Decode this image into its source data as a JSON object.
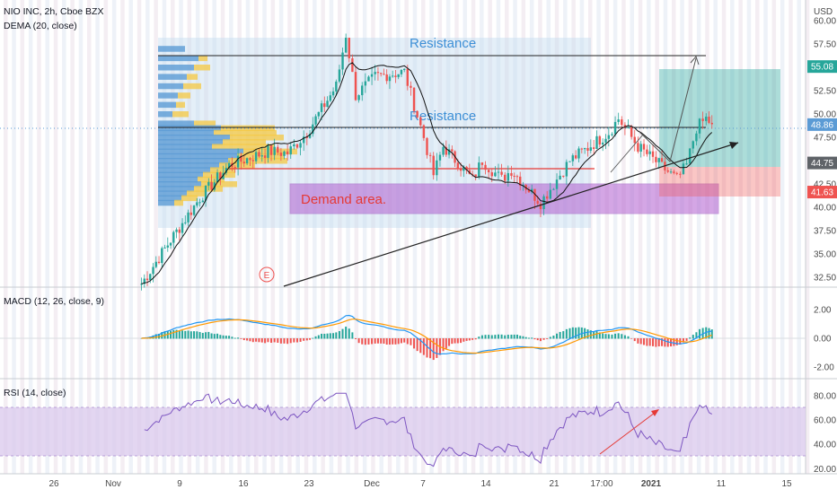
{
  "header": {
    "symbol_line": "NIO INC, 2h, Cboe BZX",
    "indicator_line": "DEMA (20, close)"
  },
  "price_axis": {
    "currency": "USD",
    "ticks": [
      "60.00",
      "57.50",
      "55.00",
      "52.50",
      "50.00",
      "47.50",
      "45.00",
      "42.50",
      "40.00",
      "37.50",
      "35.00",
      "32.50"
    ],
    "badges": [
      {
        "value": "55.08",
        "color": "#26a69a"
      },
      {
        "value": "48.86",
        "color": "#5b9bd5"
      },
      {
        "value": "44.75",
        "color": "#5f6368"
      },
      {
        "value": "41.63",
        "color": "#ef5350"
      }
    ]
  },
  "x_axis": {
    "labels": [
      "26",
      "Nov",
      "9",
      "16",
      "23",
      "Dec",
      "7",
      "14",
      "21",
      "17:00",
      "2021",
      "11",
      "15"
    ]
  },
  "annotations": {
    "resistance_top": "Resistance",
    "resistance_mid": "Resistance",
    "demand": "Demand area.",
    "event_marker": "E"
  },
  "macd_panel": {
    "title": "MACD (12, 26, close, 9)",
    "ticks": [
      "2.00",
      "0.00",
      "-2.00"
    ]
  },
  "rsi_panel": {
    "title": "RSI (14, close)",
    "ticks": [
      "80.00",
      "60.00",
      "40.00",
      "20.00"
    ]
  },
  "colors": {
    "up": "#26a69a",
    "down": "#ef5350",
    "dema": "#111111",
    "macd_line": "#2196f3",
    "signal_line": "#ff9800",
    "rsi_line": "#7e57c2",
    "rsi_band": "#d9c8ec",
    "demand_fill": "#b15fd0",
    "demand_text": "#e53935",
    "resistance_text": "#3d8fd6",
    "volume_profile_up": "#5b9bd5",
    "volume_profile_down": "#f5c842"
  },
  "chart_data": {
    "type": "candlestick",
    "title": "NIO INC, 2h, Cboe BZX",
    "y_unit": "USD",
    "ylim": [
      32.5,
      60.5
    ],
    "dema_period": 20,
    "x_range": [
      "Oct 21",
      "Jan 15"
    ],
    "waypoints": [
      {
        "t": "Nov 3",
        "close": 31.8
      },
      {
        "t": "Nov 6",
        "close": 36.5
      },
      {
        "t": "Nov 9",
        "close": 41.0
      },
      {
        "t": "Nov 12",
        "close": 44.5
      },
      {
        "t": "Nov 16",
        "close": 46.0
      },
      {
        "t": "Nov 18",
        "close": 45.8
      },
      {
        "t": "Nov 20",
        "close": 48.0
      },
      {
        "t": "Nov 23",
        "close": 53.0
      },
      {
        "t": "Nov 24",
        "close": 58.5
      },
      {
        "t": "Nov 25",
        "close": 52.0
      },
      {
        "t": "Nov 27",
        "close": 54.0
      },
      {
        "t": "Nov 30",
        "close": 54.5
      },
      {
        "t": "Dec 1",
        "close": 51.0
      },
      {
        "t": "Dec 2",
        "close": 47.5
      },
      {
        "t": "Dec 3",
        "close": 43.5
      },
      {
        "t": "Dec 4",
        "close": 46.5
      },
      {
        "t": "Dec 7",
        "close": 43.0
      },
      {
        "t": "Dec 8",
        "close": 45.0
      },
      {
        "t": "Dec 10",
        "close": 43.0
      },
      {
        "t": "Dec 11",
        "close": 44.0
      },
      {
        "t": "Dec 14",
        "close": 40.5
      },
      {
        "t": "Dec 15",
        "close": 42.0
      },
      {
        "t": "Dec 17",
        "close": 45.0
      },
      {
        "t": "Dec 21",
        "close": 48.0
      },
      {
        "t": "Dec 22",
        "close": 49.5
      },
      {
        "t": "Dec 23",
        "close": 48.0
      },
      {
        "t": "Dec 24",
        "close": 46.5
      },
      {
        "t": "Dec 28",
        "close": 43.0
      },
      {
        "t": "Dec 29",
        "close": 44.5
      },
      {
        "t": "Dec 30",
        "close": 48.5
      },
      {
        "t": "Dec 31",
        "close": 49.5
      },
      {
        "t": "Dec 31 late",
        "close": 48.9
      }
    ],
    "levels": {
      "resistance_top": 57.0,
      "resistance_mid": 49.0,
      "red_line": 45.0,
      "demand_zone": [
        40.0,
        43.3
      ]
    },
    "trade_setup": {
      "entry": 44.75,
      "target": 55.08,
      "stop": 41.63,
      "last": 48.86
    },
    "macd": {
      "params": [
        12,
        26,
        9
      ],
      "ylim": [
        -2.0,
        2.0
      ]
    },
    "rsi": {
      "period": 14,
      "band": [
        30,
        70
      ],
      "ylim": [
        20,
        85
      ]
    }
  }
}
